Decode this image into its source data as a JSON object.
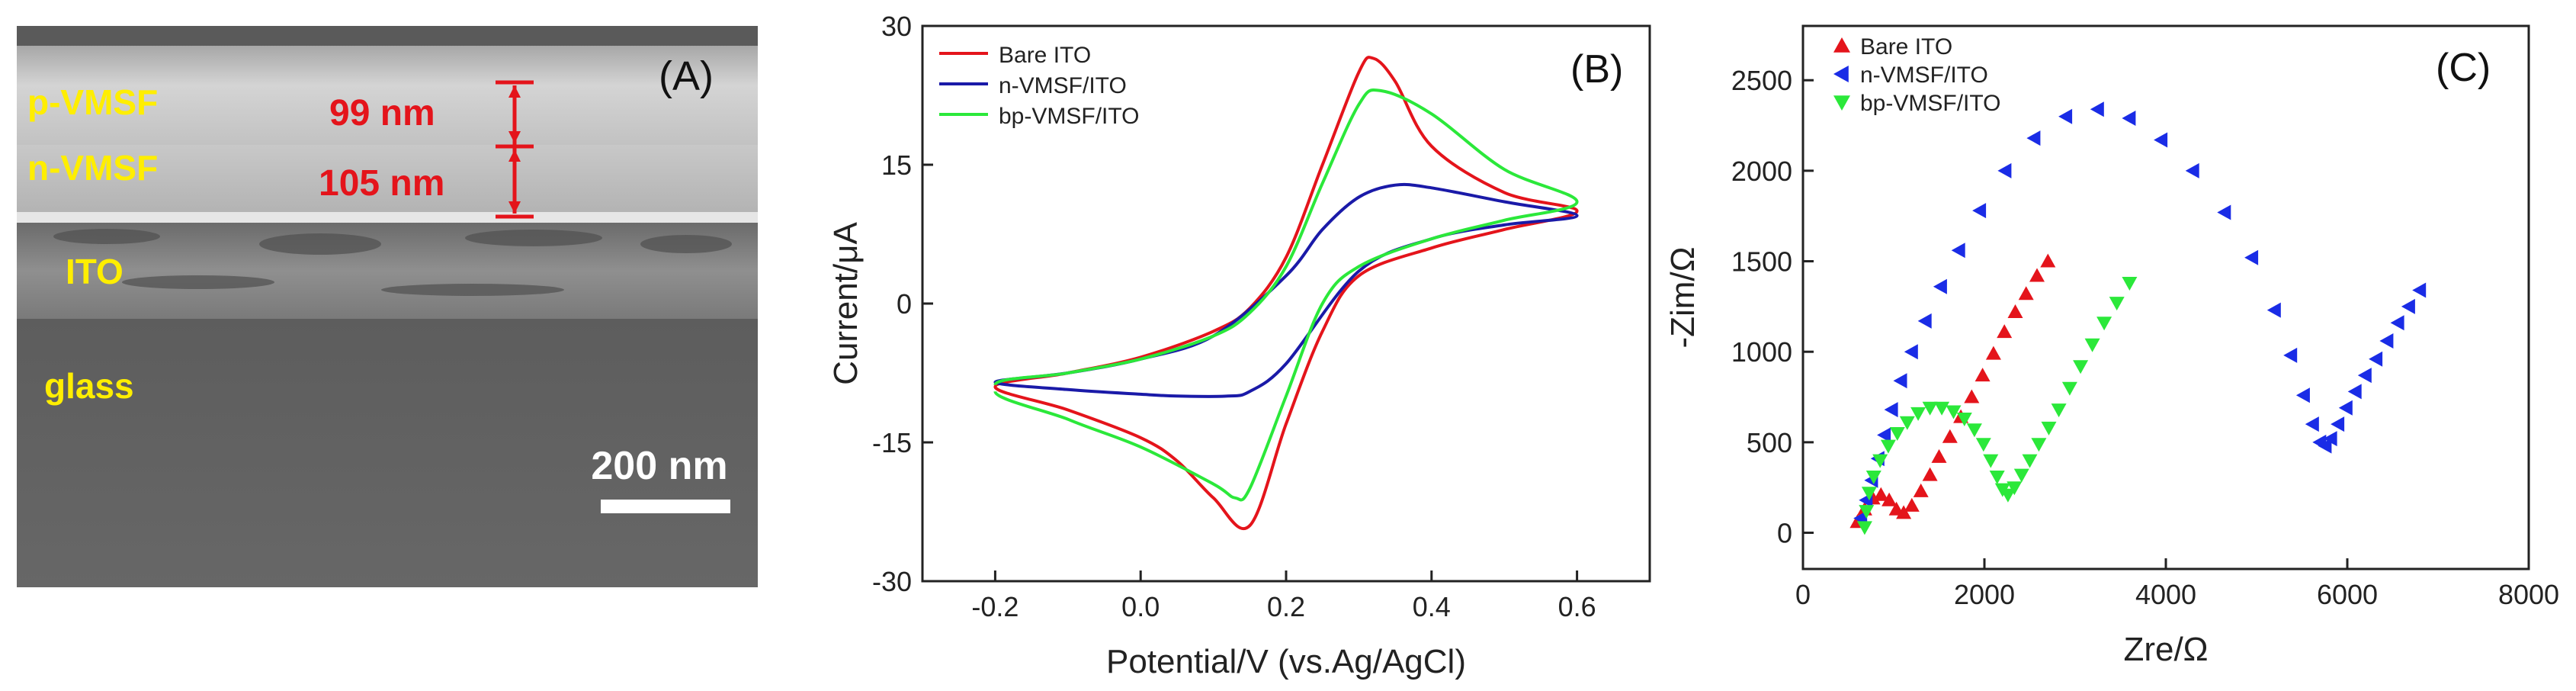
{
  "panel_a": {
    "panel_label": "(A)",
    "layer_labels": [
      "p-VMSF",
      "n-VMSF",
      "ITO",
      "glass"
    ],
    "thickness_labels": [
      "99 nm",
      "105 nm"
    ],
    "scale_bar_label": "200 nm",
    "colors": {
      "layer_text": "#ffee00",
      "thickness_text": "#e4141b",
      "scale": "#ffffff"
    }
  },
  "chart_data": [
    {
      "type": "line",
      "panel_label": "(B)",
      "xlabel": "Potential/V (vs.Ag/AgCl)",
      "ylabel": "Current/μA",
      "xlim": [
        -0.3,
        0.7
      ],
      "ylim": [
        -30,
        30
      ],
      "xticks": [
        -0.2,
        0.0,
        0.2,
        0.4,
        0.6
      ],
      "xtick_labels": [
        "-0.2",
        "0.0",
        "0.2",
        "0.4",
        "0.6"
      ],
      "yticks": [
        -30,
        -15,
        0,
        15,
        30
      ],
      "ytick_labels": [
        "-30",
        "-15",
        "0",
        "15",
        "30"
      ],
      "legend_position": "top-left",
      "series": [
        {
          "name": "Bare ITO",
          "color": "#e4141b",
          "x": [
            -0.2,
            -0.1,
            0.0,
            0.1,
            0.15,
            0.2,
            0.25,
            0.3,
            0.32,
            0.35,
            0.4,
            0.5,
            0.6,
            0.5,
            0.4,
            0.3,
            0.25,
            0.2,
            0.15,
            0.1,
            0.05,
            0.0,
            -0.1,
            -0.2
          ],
          "y": [
            -9,
            -7.5,
            -5.8,
            -3,
            -0.5,
            5,
            15,
            25,
            26.5,
            24,
            17,
            12,
            10,
            8,
            6,
            3,
            -3,
            -13,
            -24,
            -21,
            -17,
            -14.5,
            -11.5,
            -9
          ]
        },
        {
          "name": "n-VMSF/ITO",
          "color": "#1a1aa8",
          "x": [
            -0.2,
            -0.1,
            0.0,
            0.1,
            0.2,
            0.25,
            0.3,
            0.35,
            0.4,
            0.5,
            0.6,
            0.5,
            0.4,
            0.3,
            0.2,
            0.15,
            0.12,
            0.05,
            0.0,
            -0.1,
            -0.2
          ],
          "y": [
            -8.5,
            -7.5,
            -6,
            -3.5,
            3,
            8,
            11.5,
            12.8,
            12.5,
            11,
            9.5,
            8.5,
            7,
            3.5,
            -6.5,
            -9.5,
            -10,
            -10,
            -9.8,
            -9.3,
            -8.5
          ]
        },
        {
          "name": "bp-VMSF/ITO",
          "color": "#2be83a",
          "x": [
            -0.2,
            -0.1,
            0.0,
            0.1,
            0.15,
            0.2,
            0.25,
            0.3,
            0.33,
            0.4,
            0.5,
            0.6,
            0.5,
            0.4,
            0.3,
            0.25,
            0.2,
            0.15,
            0.13,
            0.1,
            0.0,
            -0.1,
            -0.2
          ],
          "y": [
            -8.8,
            -7.5,
            -6,
            -3.5,
            -1,
            4,
            13,
            21.5,
            23,
            20.5,
            14.5,
            11,
            9,
            7,
            4,
            0,
            -10,
            -20,
            -21,
            -19.5,
            -15.5,
            -12.5,
            -9.5
          ]
        }
      ]
    },
    {
      "type": "scatter",
      "panel_label": "(C)",
      "xlabel": "Zre/Ω",
      "ylabel": "-Zim/Ω",
      "xlim": [
        0,
        8000
      ],
      "ylim": [
        -200,
        2800
      ],
      "xticks": [
        0,
        2000,
        4000,
        6000,
        8000
      ],
      "xtick_labels": [
        "0",
        "2000",
        "4000",
        "6000",
        "8000"
      ],
      "yticks": [
        0,
        500,
        1000,
        1500,
        2000,
        2500
      ],
      "ytick_labels": [
        "0",
        "500",
        "1000",
        "1500",
        "2000",
        "2500"
      ],
      "legend_position": "top-left",
      "series": [
        {
          "name": "Bare ITO",
          "color": "#e4141b",
          "marker": "triangle-up",
          "x": [
            600,
            680,
            770,
            860,
            950,
            1030,
            1110,
            1200,
            1300,
            1400,
            1500,
            1620,
            1740,
            1860,
            1980,
            2100,
            2220,
            2340,
            2460,
            2580,
            2700
          ],
          "y": [
            60,
            130,
            190,
            210,
            180,
            130,
            110,
            150,
            230,
            320,
            420,
            530,
            640,
            750,
            870,
            990,
            1110,
            1220,
            1320,
            1420,
            1500
          ]
        },
        {
          "name": "n-VMSF/ITO",
          "color": "#1a2ce6",
          "marker": "triangle-left",
          "x": [
            640,
            700,
            760,
            830,
            900,
            980,
            1080,
            1200,
            1350,
            1520,
            1720,
            1950,
            2230,
            2550,
            2900,
            3250,
            3600,
            3950,
            4300,
            4650,
            4950,
            5200,
            5380,
            5520,
            5620,
            5700,
            5760,
            5820,
            5900,
            5990,
            6090,
            6200,
            6320,
            6440,
            6560,
            6680,
            6800
          ],
          "y": [
            80,
            180,
            290,
            410,
            540,
            680,
            840,
            1000,
            1170,
            1360,
            1560,
            1780,
            2000,
            2180,
            2300,
            2340,
            2290,
            2170,
            2000,
            1770,
            1520,
            1230,
            980,
            760,
            600,
            500,
            480,
            520,
            600,
            690,
            780,
            870,
            960,
            1060,
            1160,
            1250,
            1340
          ]
        },
        {
          "name": "bp-VMSF/ITO",
          "color": "#2be83a",
          "marker": "triangle-down",
          "x": [
            680,
            700,
            730,
            780,
            850,
            940,
            1040,
            1150,
            1270,
            1400,
            1530,
            1660,
            1780,
            1890,
            1990,
            2070,
            2140,
            2200,
            2260,
            2330,
            2410,
            2500,
            2600,
            2710,
            2820,
            2940,
            3060,
            3190,
            3320,
            3460,
            3600
          ],
          "y": [
            30,
            120,
            220,
            310,
            400,
            480,
            550,
            610,
            660,
            690,
            690,
            670,
            630,
            570,
            490,
            400,
            310,
            240,
            210,
            250,
            320,
            400,
            490,
            580,
            680,
            800,
            920,
            1040,
            1160,
            1270,
            1380
          ]
        }
      ]
    }
  ]
}
